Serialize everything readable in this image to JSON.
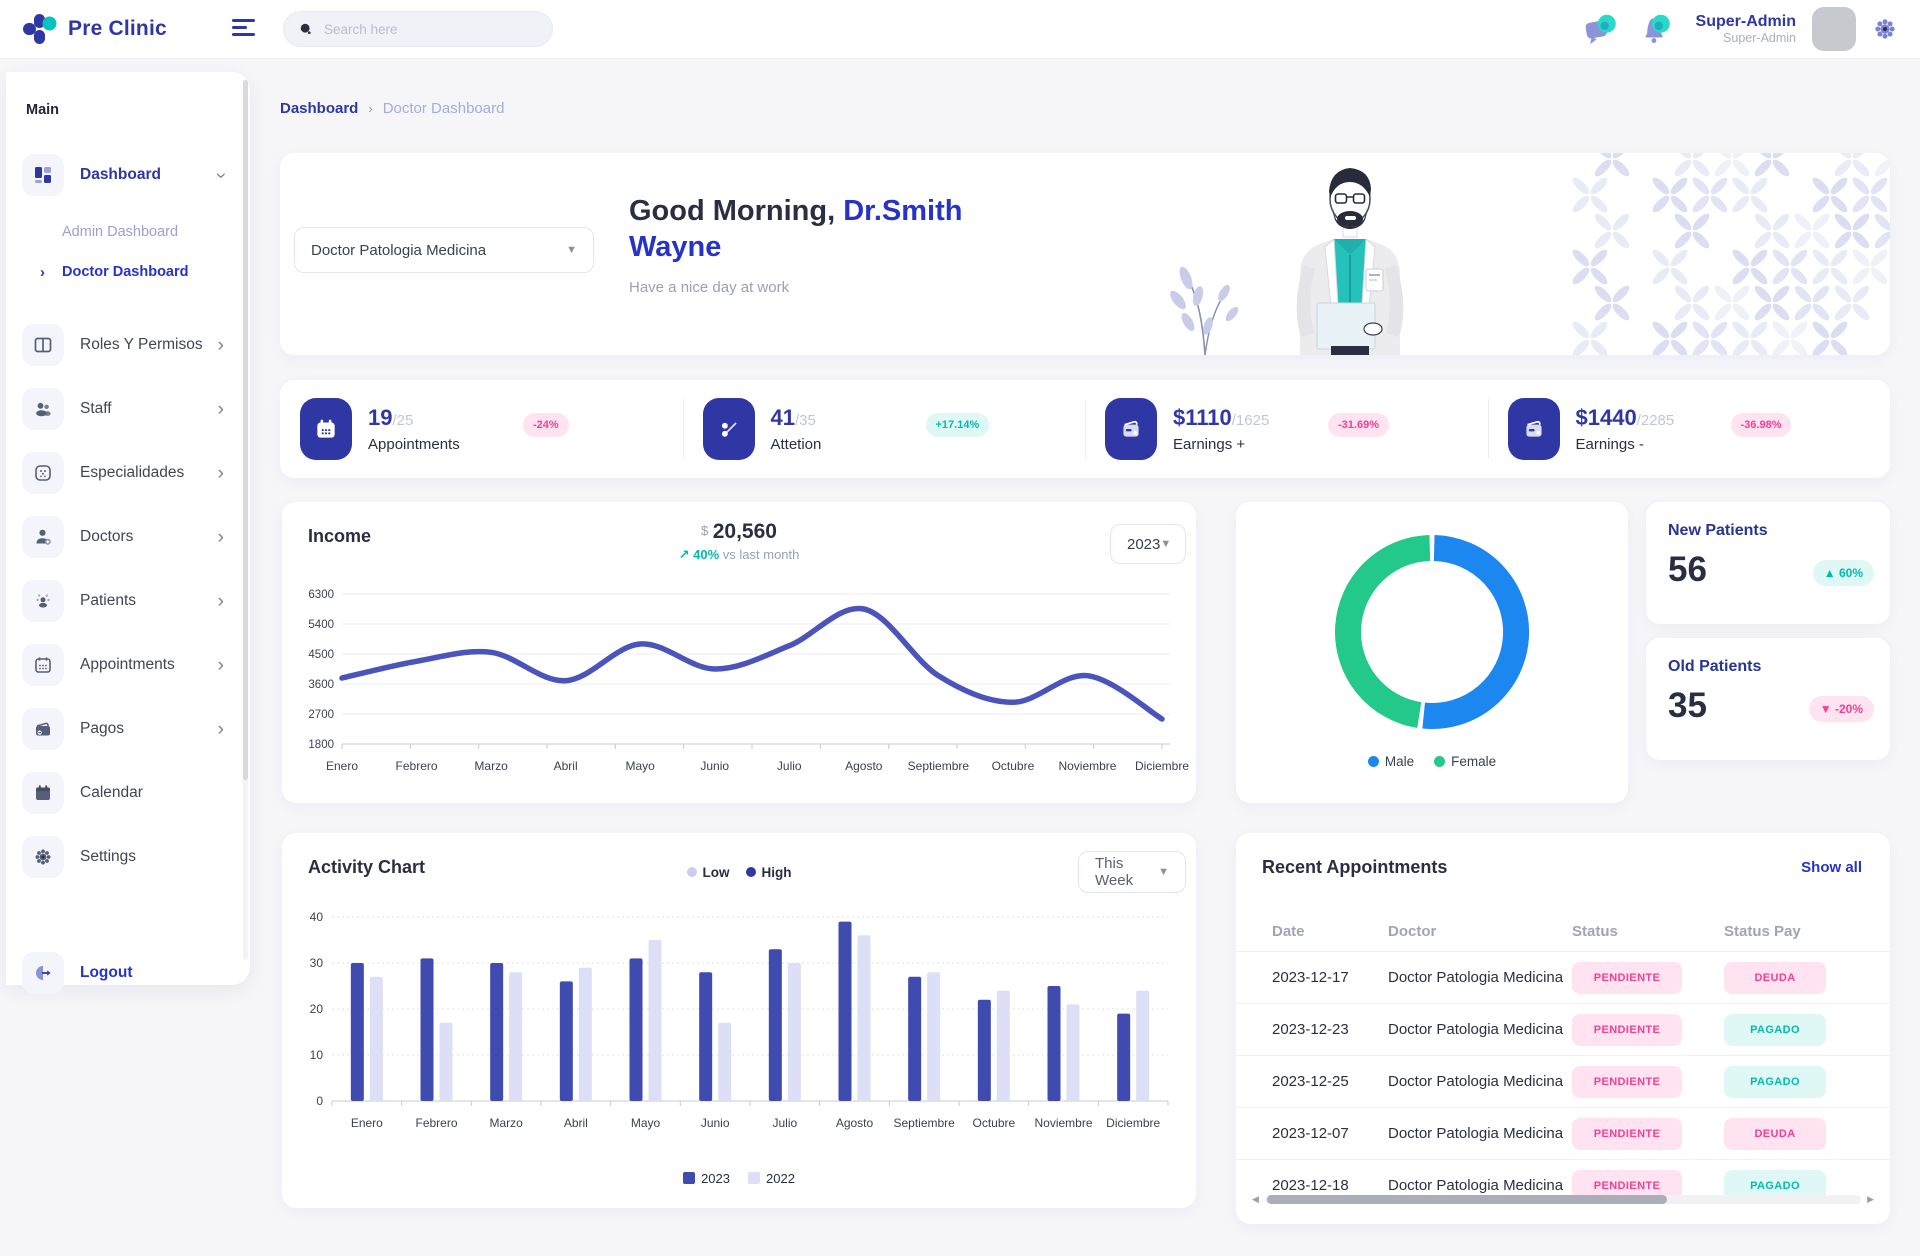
{
  "header": {
    "brand": "Pre Clinic",
    "search_placeholder": "Search here",
    "user_name": "Super-Admin",
    "user_role": "Super-Admin"
  },
  "sidebar": {
    "section_label": "Main",
    "items": [
      {
        "label": "Dashboard",
        "icon": "dashboard-icon",
        "slug": "dashboard",
        "expanded": true,
        "active": true
      },
      {
        "label": "Roles Y Permisos",
        "icon": "columns-icon",
        "slug": "roles-y-permisos",
        "chevron": true
      },
      {
        "label": "Staff",
        "icon": "people-icon",
        "slug": "staff",
        "chevron": true
      },
      {
        "label": "Especialidades",
        "icon": "specialties-icon",
        "slug": "especialidades",
        "chevron": true
      },
      {
        "label": "Doctors",
        "icon": "doctor-icon",
        "slug": "doctors",
        "chevron": true
      },
      {
        "label": "Patients",
        "icon": "patients-icon",
        "slug": "patients",
        "chevron": true
      },
      {
        "label": "Appointments",
        "icon": "calendar-dots-icon",
        "slug": "appointments",
        "chevron": true
      },
      {
        "label": "Pagos",
        "icon": "wallet-icon",
        "slug": "pagos",
        "chevron": true
      },
      {
        "label": "Calendar",
        "icon": "calendar-icon",
        "slug": "calendar",
        "chevron": false
      },
      {
        "label": "Settings",
        "icon": "gear-icon",
        "slug": "settings",
        "chevron": false
      }
    ],
    "dashboard_children": [
      {
        "label": "Admin Dashboard",
        "slug": "admin-dashboard",
        "active": false
      },
      {
        "label": "Doctor Dashboard",
        "slug": "doctor-dashboard",
        "active": true
      }
    ],
    "logout_label": "Logout"
  },
  "breadcrumb": {
    "parent": "Dashboard",
    "separator": "›",
    "current": "Doctor Dashboard"
  },
  "banner": {
    "doctor_select": "Doctor Patologia Medicina",
    "greeting_prefix": "Good Morning, ",
    "doctor_name": "Dr.Smith Wayne",
    "subtitle": "Have a nice day at work"
  },
  "stats": [
    {
      "icon": "calendar-icon",
      "value": "19",
      "total": "/25",
      "label": "Appointments",
      "badge": "-24%",
      "tone": "pink"
    },
    {
      "icon": "percent-icon",
      "value": "41",
      "total": "/35",
      "label": "Attetion",
      "badge": "+17.14%",
      "tone": "teal"
    },
    {
      "icon": "wallet-icon",
      "value": "$1110",
      "total": "/1625",
      "label": "Earnings +",
      "badge": "-31.69%",
      "tone": "pink"
    },
    {
      "icon": "wallet-icon",
      "value": "$1440",
      "total": "/2285",
      "label": "Earnings -",
      "badge": "-36.98%",
      "tone": "pink"
    }
  ],
  "income": {
    "title": "Income",
    "currency": "$",
    "amount": "20,560",
    "trend_arrow": "↗",
    "trend_pct": "40%",
    "trend_suffix": " vs last month",
    "year_select": "2023"
  },
  "patients": {
    "new": {
      "title": "New Patients",
      "value": "56",
      "badge": "▲ 60%",
      "tone": "teal"
    },
    "old": {
      "title": "Old Patients",
      "value": "35",
      "badge": "▼ -20%",
      "tone": "pink"
    }
  },
  "activity": {
    "title": "Activity Chart",
    "legend_low": "Low",
    "legend_high": "High",
    "range_select": "This Week"
  },
  "appointments": {
    "title": "Recent Appointments",
    "show_all": "Show all",
    "columns": [
      "Date",
      "Doctor",
      "Status",
      "Status Pay"
    ],
    "rows": [
      {
        "date": "2023-12-17",
        "doctor": "Doctor Patologia Medicina",
        "status": "PENDIENTE",
        "status_tone": "pink",
        "pay": "DEUDA",
        "pay_tone": "pink"
      },
      {
        "date": "2023-12-23",
        "doctor": "Doctor Patologia Medicina",
        "status": "PENDIENTE",
        "status_tone": "pink",
        "pay": "PAGADO",
        "pay_tone": "teal"
      },
      {
        "date": "2023-12-25",
        "doctor": "Doctor Patologia Medicina",
        "status": "PENDIENTE",
        "status_tone": "pink",
        "pay": "PAGADO",
        "pay_tone": "teal"
      },
      {
        "date": "2023-12-07",
        "doctor": "Doctor Patologia Medicina",
        "status": "PENDIENTE",
        "status_tone": "pink",
        "pay": "DEUDA",
        "pay_tone": "pink"
      },
      {
        "date": "2023-12-18",
        "doctor": "Doctor Patologia Medicina",
        "status": "PENDIENTE",
        "status_tone": "pink",
        "pay": "PAGADO",
        "pay_tone": "teal"
      }
    ]
  },
  "chart_data": [
    {
      "type": "line",
      "title": "Income",
      "x": [
        "Enero",
        "Febrero",
        "Marzo",
        "Abril",
        "Mayo",
        "Junio",
        "Julio",
        "Agosto",
        "Septiembre",
        "Octubre",
        "Noviembre",
        "Diciembre"
      ],
      "series": [
        {
          "name": "Income 2023",
          "color": "#4A54BA",
          "values": [
            3780,
            4280,
            4550,
            3700,
            4800,
            4050,
            4750,
            5850,
            3850,
            3050,
            3850,
            2550
          ]
        }
      ],
      "ylim": [
        1800,
        6300
      ],
      "yticks": [
        1800,
        2700,
        3600,
        4500,
        5400,
        6300
      ],
      "grid": true,
      "legend_position": "none"
    },
    {
      "type": "pie",
      "title": "Patients by Gender",
      "labels": [
        "Male",
        "Female"
      ],
      "values": [
        52,
        48
      ],
      "colors": [
        "#1D87F0",
        "#22C98B"
      ],
      "donut": true,
      "legend_position": "bottom"
    },
    {
      "type": "bar",
      "title": "Activity Chart",
      "categories": [
        "Enero",
        "Febrero",
        "Marzo",
        "Abril",
        "Mayo",
        "Junio",
        "Julio",
        "Agosto",
        "Septiembre",
        "Octubre",
        "Noviembre",
        "Diciembre"
      ],
      "series": [
        {
          "name": "2023",
          "color": "#3F4BAE",
          "values": [
            30,
            31,
            30,
            26,
            31,
            28,
            33,
            39,
            27,
            22,
            25,
            19
          ]
        },
        {
          "name": "2022",
          "color": "#DCDFF5",
          "values": [
            27,
            17,
            28,
            29,
            35,
            17,
            30,
            36,
            28,
            24,
            21,
            24
          ]
        }
      ],
      "ylim": [
        0,
        40
      ],
      "yticks": [
        0,
        10,
        20,
        30,
        40
      ],
      "grid": true,
      "legend_position": "bottom"
    }
  ],
  "colors": {
    "primary": "#2E37A4",
    "accent_blue": "#2733C8",
    "teal": "#00BBB0",
    "teal_bg": "#DFF8F5",
    "pink": "#F43F92",
    "pink_bg": "#FFE3F1",
    "male": "#1D87F0",
    "female": "#22C98B",
    "muted": "#9CA0B5",
    "page_bg": "#F6F6F9"
  }
}
